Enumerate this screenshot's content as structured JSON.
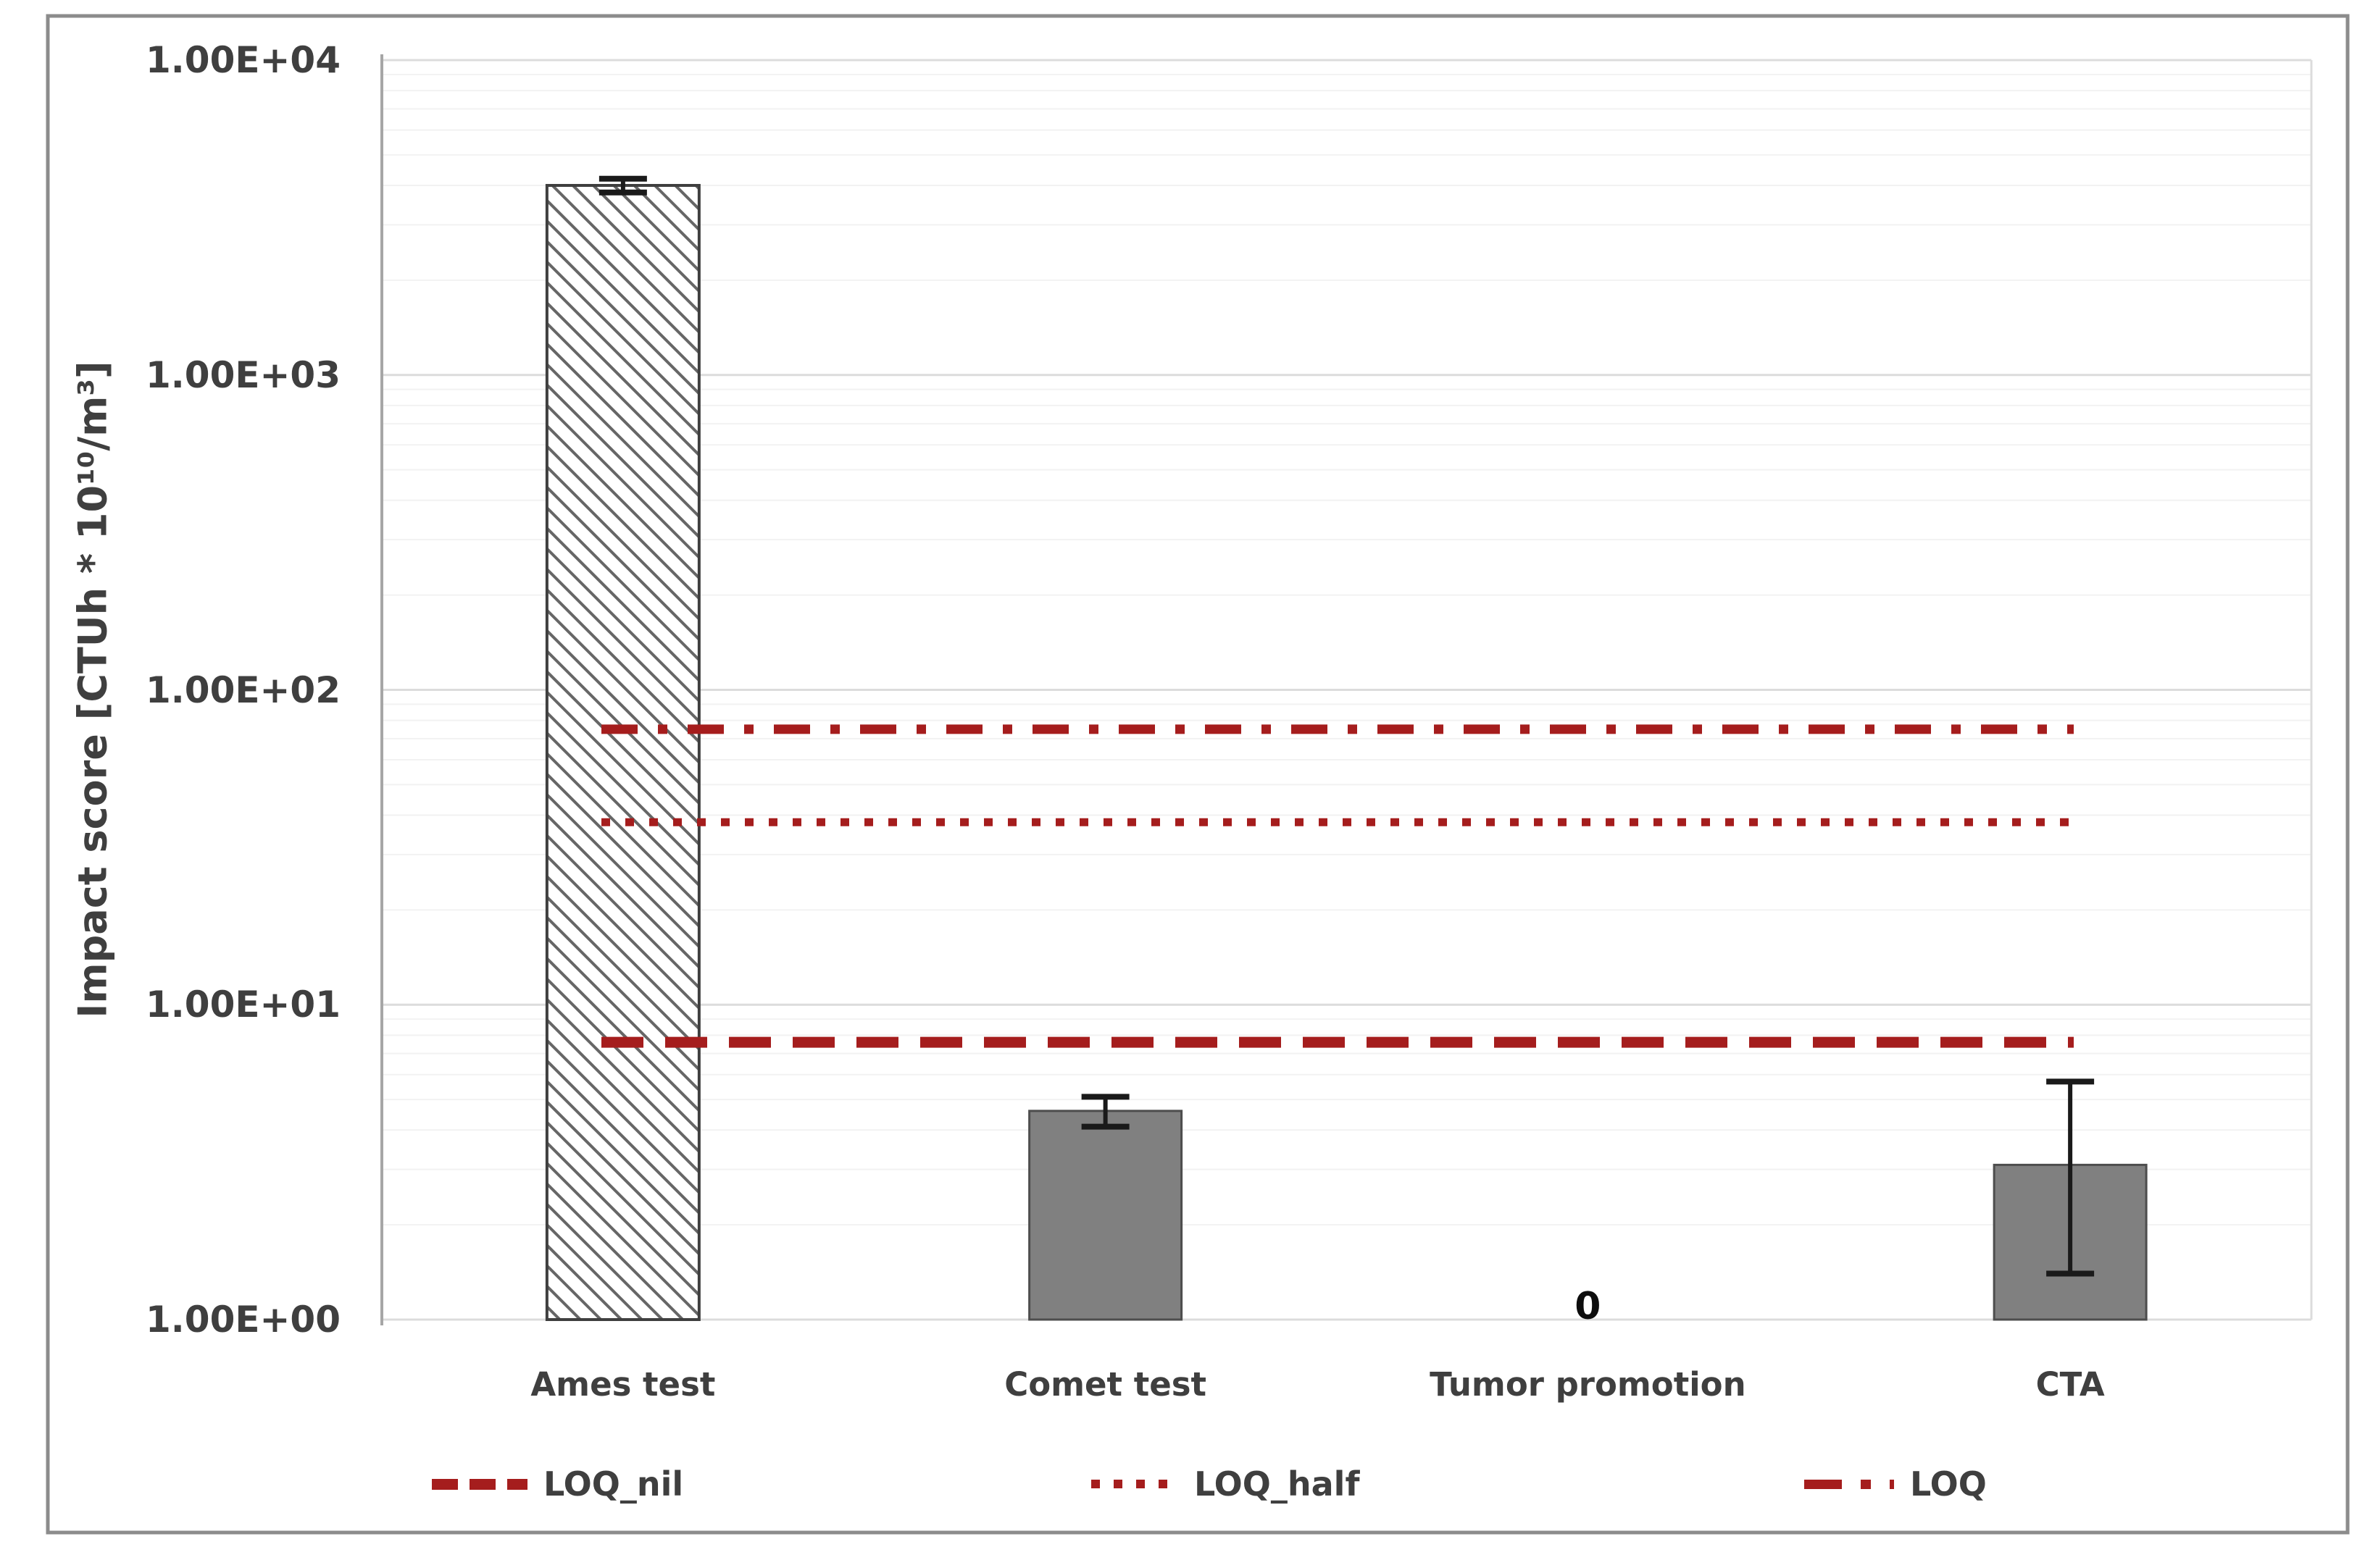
{
  "chart_data": {
    "type": "bar",
    "title": "",
    "xlabel": "",
    "ylabel": "Impact score [CTUh * 10¹⁰/m³]",
    "y_scale": "log",
    "ylim": [
      1,
      10000
    ],
    "y_ticks": [
      "1.00E+00",
      "1.00E+01",
      "1.00E+02",
      "1.00E+03",
      "1.00E+04"
    ],
    "grid": "major-and-minor-log",
    "legend_position": "bottom",
    "categories": [
      "Ames test",
      "Comet test",
      "Tumor promotion",
      "CTA"
    ],
    "series": [
      {
        "name": "Impact score",
        "values": [
          4000,
          4.6,
          0,
          3.1
        ],
        "error_low": [
          3800,
          4.1,
          null,
          1.4
        ],
        "error_high": [
          4200,
          5.1,
          null,
          5.7
        ],
        "bar_styles": [
          "hatched",
          "solid",
          "none",
          "solid"
        ],
        "zero_label": "0"
      }
    ],
    "reference_lines": [
      {
        "name": "LOQ_nil",
        "value": 7.6,
        "style": "dashed"
      },
      {
        "name": "LOQ_half",
        "value": 38,
        "style": "dotted"
      },
      {
        "name": "LOQ",
        "value": 75,
        "style": "dashdot"
      }
    ],
    "colors": {
      "reference_line": "#a51d1d",
      "bar_fill": "#808080",
      "bar_border": "#4d4d4d",
      "hatch_stroke": "#666666",
      "error_bar": "#1a1a1a",
      "text": "#3f3f3f",
      "grid_major": "#dcdcdc",
      "grid_minor": "#f2f2f2",
      "axis_line": "#a6a6a6",
      "figure_border": "#8c8c8c"
    }
  }
}
